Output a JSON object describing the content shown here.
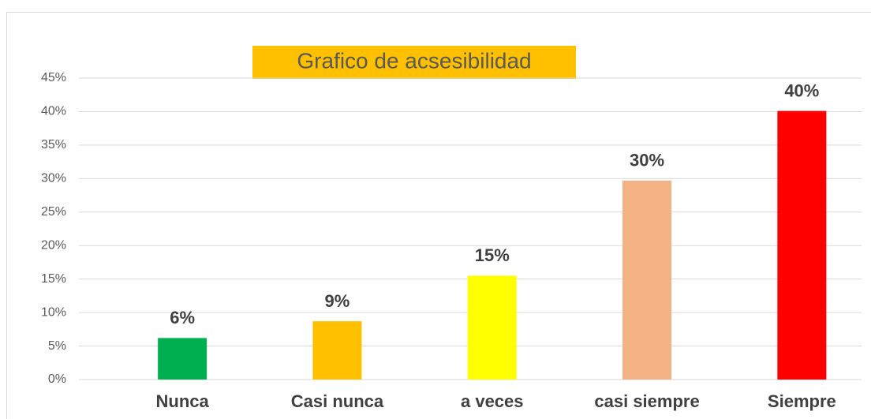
{
  "chart_data": {
    "type": "bar",
    "title": "Grafico de acsesibilidad",
    "categories": [
      "Nunca",
      "Casi nunca",
      "a veces",
      "casi siempre",
      "Siempre"
    ],
    "values": [
      6.2,
      8.7,
      15.5,
      29.7,
      40.1
    ],
    "value_labels": [
      "6%",
      "9%",
      "15%",
      "30%",
      "40%"
    ],
    "colors": [
      "#00b050",
      "#ffc000",
      "#ffff00",
      "#f4b183",
      "#ff0000"
    ],
    "title_background": "#ffc000",
    "ylim": [
      0,
      45
    ],
    "yticks": [
      {
        "value": 0,
        "label": "0%"
      },
      {
        "value": 5,
        "label": "5%"
      },
      {
        "value": 10,
        "label": "10%"
      },
      {
        "value": 15,
        "label": "15%"
      },
      {
        "value": 20,
        "label": "20%"
      },
      {
        "value": 25,
        "label": "25%"
      },
      {
        "value": 30,
        "label": "30%"
      },
      {
        "value": 35,
        "label": "35%"
      },
      {
        "value": 40,
        "label": "40%"
      },
      {
        "value": 45,
        "label": "45%"
      }
    ],
    "grid": true
  }
}
